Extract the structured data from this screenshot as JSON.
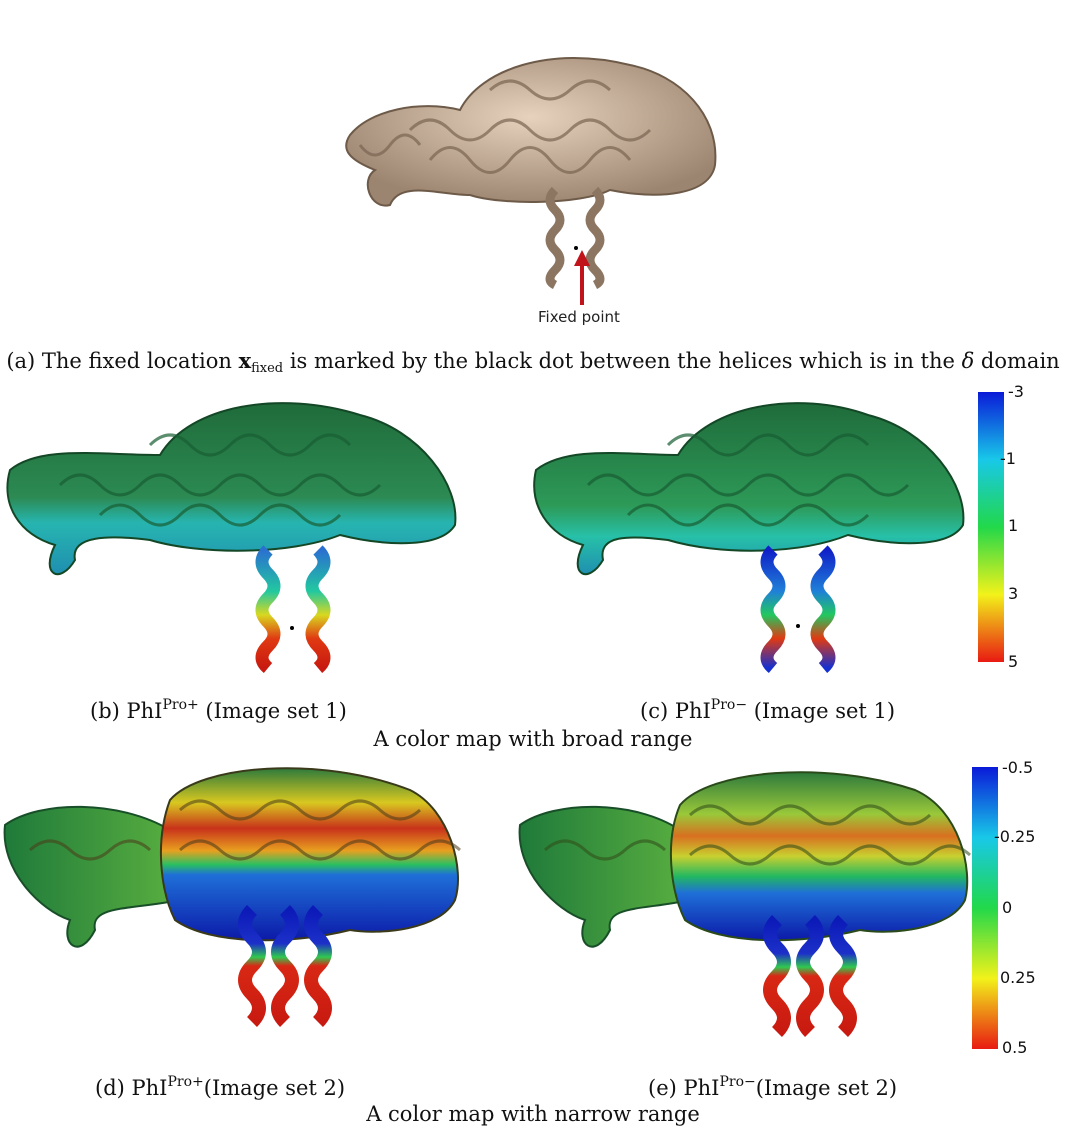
{
  "panels": {
    "a": {
      "caption_pre": "(a) The fixed location ",
      "caption_x": "x",
      "caption_sub": "fixed",
      "caption_mid": " is marked by the black dot between the helices which is in the ",
      "caption_delta": "δ",
      "caption_post": " domain",
      "arrow_label": "Fixed point"
    },
    "b": {
      "caption_pre": "(b) PhI",
      "caption_sup": "Pro+",
      "caption_post": " (Image set 1)"
    },
    "c": {
      "caption_pre": "(c) PhI",
      "caption_sup": "Pro−",
      "caption_post": " (Image set 1)"
    },
    "d": {
      "caption_pre": "(d) PhI",
      "caption_sup": "Pro+",
      "caption_post": "(Image set 2)"
    },
    "e": {
      "caption_pre": "(e) PhI",
      "caption_sup": "Pro−",
      "caption_post": "(Image set 2)"
    }
  },
  "row_captions": {
    "broad": "A color map with broad range",
    "narrow": "A color map with narrow range"
  },
  "colorbar_broad": {
    "ticks": [
      "-3",
      "-1",
      "1",
      "3",
      "5"
    ],
    "colors": [
      "#0a1ad8",
      "#18c8e8",
      "#22d84a",
      "#f2f21a",
      "#e81a12"
    ]
  },
  "colorbar_narrow": {
    "ticks": [
      "-0.5",
      "-0.25",
      "0",
      "0.25",
      "0.5"
    ],
    "colors": [
      "#0a1ad8",
      "#18c8e8",
      "#22d84a",
      "#f2f21a",
      "#e81a12"
    ]
  }
}
